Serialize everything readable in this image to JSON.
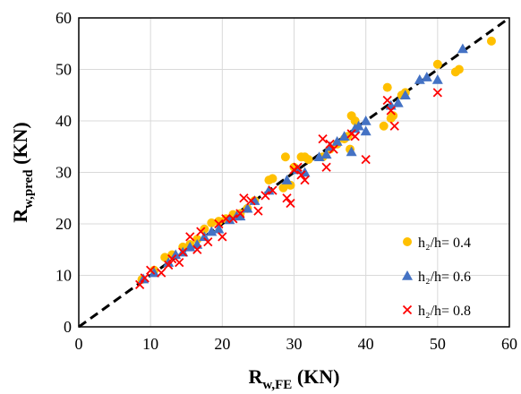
{
  "chart_data": {
    "type": "scatter",
    "xlabel": {
      "main": "R",
      "sub": "w,FE",
      "unit": " (KN)"
    },
    "ylabel": {
      "main": "R",
      "sub": "w,pred",
      "unit": " (KN)"
    },
    "xlim": [
      0,
      60
    ],
    "ylim": [
      0,
      60
    ],
    "xticks": [
      "0",
      "10",
      "20",
      "30",
      "40",
      "50",
      "60"
    ],
    "yticks": [
      "0",
      "10",
      "20",
      "30",
      "40",
      "50",
      "60"
    ],
    "grid": true,
    "legend_position": "bottom-right",
    "reference_line": {
      "style": "dashed",
      "color": "#000000",
      "points": [
        [
          0,
          0
        ],
        [
          60,
          60
        ]
      ]
    },
    "series": [
      {
        "name": "h₂/h= 0.4",
        "marker": "circle",
        "color": "#FFC000",
        "points": [
          [
            8.8,
            9.2
          ],
          [
            10.5,
            11.0
          ],
          [
            12.0,
            13.5
          ],
          [
            13.0,
            14.0
          ],
          [
            14.5,
            15.5
          ],
          [
            15.5,
            16.0
          ],
          [
            16.5,
            17.0
          ],
          [
            17.5,
            19.0
          ],
          [
            18.5,
            20.2
          ],
          [
            19.5,
            20.5
          ],
          [
            20.5,
            21.0
          ],
          [
            21.5,
            21.8
          ],
          [
            22.5,
            22.0
          ],
          [
            23.5,
            23.0
          ],
          [
            24.5,
            24.5
          ],
          [
            26.5,
            28.5
          ],
          [
            27.0,
            28.8
          ],
          [
            28.5,
            27.0
          ],
          [
            28.8,
            33.0
          ],
          [
            29.5,
            27.5
          ],
          [
            30.0,
            31.0
          ],
          [
            31.0,
            33.0
          ],
          [
            31.5,
            33.0
          ],
          [
            32.0,
            32.5
          ],
          [
            34.0,
            33.0
          ],
          [
            35.0,
            34.5
          ],
          [
            36.0,
            35.5
          ],
          [
            37.0,
            36.5
          ],
          [
            37.5,
            37.0
          ],
          [
            37.8,
            34.5
          ],
          [
            38.0,
            41.0
          ],
          [
            38.5,
            40.0
          ],
          [
            42.5,
            39.0
          ],
          [
            43.0,
            46.5
          ],
          [
            43.5,
            40.5
          ],
          [
            43.8,
            41.0
          ],
          [
            45.0,
            45.0
          ],
          [
            45.5,
            45.5
          ],
          [
            50.0,
            51.0
          ],
          [
            52.5,
            49.5
          ],
          [
            53.0,
            50.0
          ],
          [
            57.5,
            55.5
          ]
        ]
      },
      {
        "name": "h₂/h= 0.6",
        "marker": "triangle",
        "color": "#4472C4",
        "points": [
          [
            9.0,
            9.3
          ],
          [
            10.5,
            10.5
          ],
          [
            12.5,
            12.5
          ],
          [
            13.5,
            14.0
          ],
          [
            14.5,
            14.5
          ],
          [
            15.5,
            15.5
          ],
          [
            16.5,
            16.0
          ],
          [
            17.5,
            17.5
          ],
          [
            18.5,
            18.5
          ],
          [
            19.5,
            19.0
          ],
          [
            21.0,
            20.8
          ],
          [
            22.0,
            21.5
          ],
          [
            22.5,
            21.5
          ],
          [
            23.5,
            23.0
          ],
          [
            24.5,
            24.5
          ],
          [
            26.5,
            26.5
          ],
          [
            29.0,
            28.5
          ],
          [
            30.5,
            30.5
          ],
          [
            31.5,
            30.0
          ],
          [
            33.5,
            33.0
          ],
          [
            34.5,
            33.5
          ],
          [
            35.0,
            35.0
          ],
          [
            36.0,
            36.0
          ],
          [
            37.0,
            37.0
          ],
          [
            38.0,
            34.0
          ],
          [
            38.5,
            38.5
          ],
          [
            39.0,
            39.0
          ],
          [
            40.0,
            38.0
          ],
          [
            40.0,
            40.0
          ],
          [
            43.5,
            43.0
          ],
          [
            44.5,
            43.5
          ],
          [
            45.5,
            45.0
          ],
          [
            47.5,
            48.0
          ],
          [
            48.5,
            48.5
          ],
          [
            50.0,
            48.0
          ],
          [
            53.5,
            54.0
          ]
        ]
      },
      {
        "name": "h₂/h= 0.8",
        "marker": "cross",
        "color": "#FF0000",
        "points": [
          [
            8.5,
            8.2
          ],
          [
            9.2,
            9.5
          ],
          [
            10.0,
            11.0
          ],
          [
            11.5,
            10.5
          ],
          [
            12.5,
            12.0
          ],
          [
            13.0,
            13.2
          ],
          [
            14.0,
            12.5
          ],
          [
            14.5,
            14.5
          ],
          [
            15.5,
            17.5
          ],
          [
            16.5,
            15.0
          ],
          [
            17.0,
            18.5
          ],
          [
            18.0,
            16.5
          ],
          [
            19.5,
            20.0
          ],
          [
            20.0,
            17.5
          ],
          [
            20.5,
            21.0
          ],
          [
            21.5,
            21.0
          ],
          [
            22.5,
            22.0
          ],
          [
            23.0,
            25.0
          ],
          [
            24.0,
            24.5
          ],
          [
            25.0,
            22.5
          ],
          [
            26.0,
            25.5
          ],
          [
            27.0,
            26.5
          ],
          [
            29.0,
            25.0
          ],
          [
            29.5,
            24.0
          ],
          [
            30.0,
            30.5
          ],
          [
            30.5,
            31.0
          ],
          [
            31.0,
            29.5
          ],
          [
            31.5,
            28.5
          ],
          [
            34.0,
            36.5
          ],
          [
            34.5,
            31.0
          ],
          [
            35.0,
            35.5
          ],
          [
            35.5,
            34.5
          ],
          [
            38.0,
            37.5
          ],
          [
            38.5,
            37.0
          ],
          [
            40.0,
            32.5
          ],
          [
            43.0,
            44.0
          ],
          [
            43.5,
            42.0
          ],
          [
            44.0,
            39.0
          ],
          [
            50.0,
            45.5
          ]
        ]
      }
    ]
  }
}
